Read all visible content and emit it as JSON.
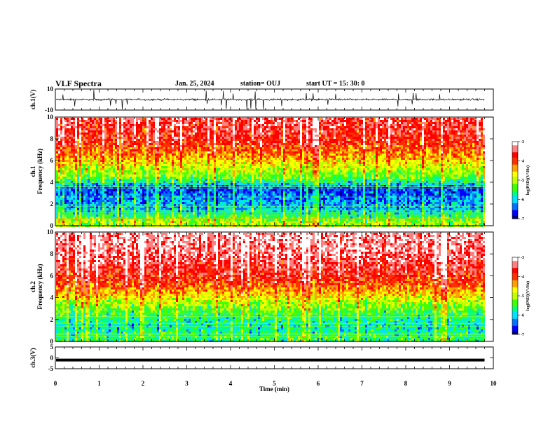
{
  "header": {
    "title": "VLF Spectra",
    "date": "Jan. 25, 2024",
    "station": "station= OUJ",
    "start": "start  UT =   15: 30: 0"
  },
  "chart_data": [
    {
      "type": "line",
      "name": "ch1-waveform",
      "ylabel": "ch.1(V)",
      "ylim": [
        -10,
        10
      ],
      "y_ticks": [
        "10",
        "-10"
      ],
      "baseline": 0,
      "amplitude": "noisy, mostly within ±2 V with frequent spikes up to ±10 V"
    },
    {
      "type": "heatmap",
      "name": "ch1-spectrogram",
      "ylabel": "ch.1\nFrequency  (kHz)",
      "ylim": [
        0,
        10
      ],
      "y_ticks": [
        "0",
        "2",
        "4",
        "6",
        "8",
        "10"
      ],
      "color_levels": [
        {
          "freq_khz": 0.5,
          "log_psd": -5.0
        },
        {
          "freq_khz": 1.5,
          "log_psd": -6.0
        },
        {
          "freq_khz": 2.5,
          "log_psd": -6.2
        },
        {
          "freq_khz": 3.5,
          "log_psd": -6.5
        },
        {
          "freq_khz": 4.5,
          "log_psd": -5.3
        },
        {
          "freq_khz": 5.5,
          "log_psd": -4.8
        },
        {
          "freq_khz": 6.5,
          "log_psd": -4.3
        },
        {
          "freq_khz": 8.0,
          "log_psd": -3.7
        },
        {
          "freq_khz": 9.5,
          "log_psd": -3.5
        }
      ],
      "colorbar": {
        "label": "log(PSD)(V²/Hz)",
        "range": [
          -7,
          -3
        ],
        "ticks": [
          "-3",
          "-4",
          "-5",
          "-6",
          "-7"
        ]
      }
    },
    {
      "type": "heatmap",
      "name": "ch2-spectrogram",
      "ylabel": "ch.2\nFrequency  (kHz)",
      "ylim": [
        0,
        10
      ],
      "y_ticks": [
        "0",
        "2",
        "4",
        "6",
        "8",
        "10"
      ],
      "color_levels": [
        {
          "freq_khz": 0.5,
          "log_psd": -5.5
        },
        {
          "freq_khz": 1.5,
          "log_psd": -5.8
        },
        {
          "freq_khz": 2.5,
          "log_psd": -5.5
        },
        {
          "freq_khz": 3.5,
          "log_psd": -5.0
        },
        {
          "freq_khz": 4.5,
          "log_psd": -4.4
        },
        {
          "freq_khz": 5.5,
          "log_psd": -3.9
        },
        {
          "freq_khz": 6.5,
          "log_psd": -3.6
        },
        {
          "freq_khz": 8.0,
          "log_psd": -3.3
        },
        {
          "freq_khz": 9.5,
          "log_psd": -3.2
        }
      ],
      "colorbar": {
        "label": "log(PSD)(V²/Hz)",
        "range": [
          -7,
          -3
        ],
        "ticks": [
          "-3",
          "-4",
          "-5",
          "-6",
          "-7"
        ]
      }
    },
    {
      "type": "line",
      "name": "ch3-waveform",
      "ylabel": "ch.3(V)",
      "ylim": [
        -5,
        5
      ],
      "y_ticks": [
        "5",
        "0",
        "-5"
      ],
      "constant_value": -1,
      "line_color": "#000000"
    }
  ],
  "x_axis": {
    "label": "Time  (min)",
    "range": [
      0,
      10
    ],
    "data_end": 9.8,
    "ticks": [
      "0",
      "1",
      "2",
      "3",
      "4",
      "5",
      "6",
      "7",
      "8",
      "9",
      "10"
    ]
  },
  "colormap": [
    "#00007a",
    "#0000ff",
    "#0070ff",
    "#00e0ff",
    "#00ff80",
    "#40ff00",
    "#c0ff00",
    "#ffff00",
    "#ffa000",
    "#ff3000",
    "#ff0000",
    "#ff8080",
    "#ffffff"
  ]
}
